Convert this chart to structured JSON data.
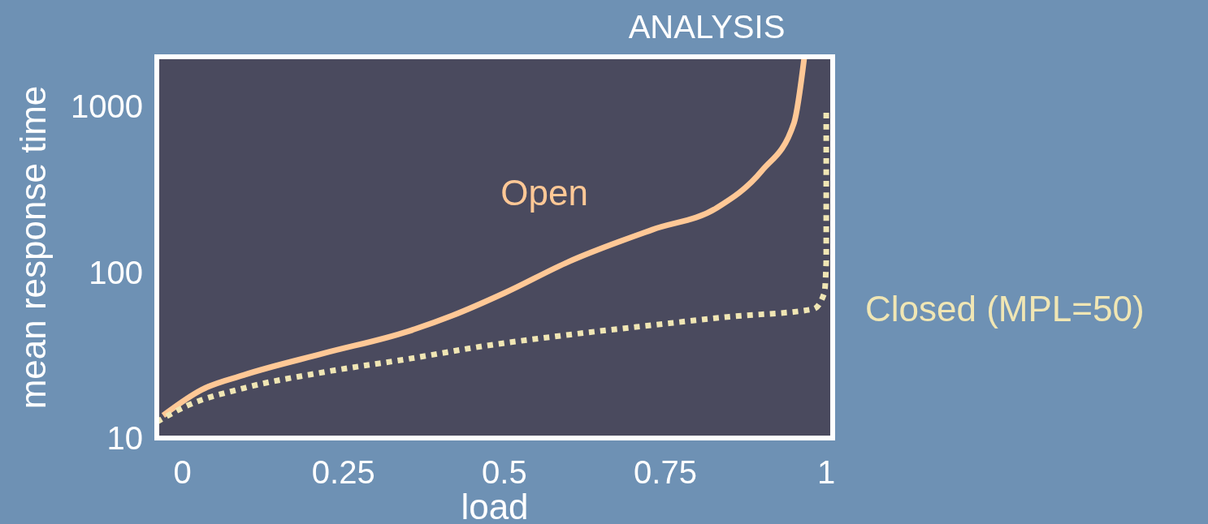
{
  "chart_data": {
    "type": "line",
    "title": "ANALYSIS",
    "xlabel": "load",
    "ylabel": "mean response time",
    "log": "y",
    "grid": false,
    "xlim": [
      -0.04,
      1.01
    ],
    "xticks": [
      0,
      0.25,
      0.5,
      0.75,
      1
    ],
    "ylim": [
      10,
      2000
    ],
    "yticks": [
      10,
      100,
      1000
    ],
    "series": [
      {
        "name": "Open",
        "color": "#ffc896",
        "line_style": "solid",
        "x": [
          -0.03,
          0.03,
          0.095,
          0.22,
          0.35,
          0.42,
          0.5,
          0.6,
          0.73,
          0.83,
          0.9,
          0.95,
          0.966
        ],
        "values": [
          13.7,
          19.6,
          24,
          32.5,
          44,
          55,
          75,
          116,
          181,
          245,
          410,
          800,
          2000
        ]
      },
      {
        "name": "Closed (MPL=50)",
        "color": "#f0e6b4",
        "line_style": "dotted",
        "x": [
          -0.04,
          0.006,
          0.095,
          0.22,
          0.35,
          0.47,
          0.6,
          0.73,
          0.85,
          0.98,
          0.997,
          1.0,
          1.0
        ],
        "values": [
          12.5,
          15.6,
          20,
          25,
          30,
          36,
          42,
          48,
          54,
          60,
          75,
          118,
          950
        ]
      }
    ]
  }
}
